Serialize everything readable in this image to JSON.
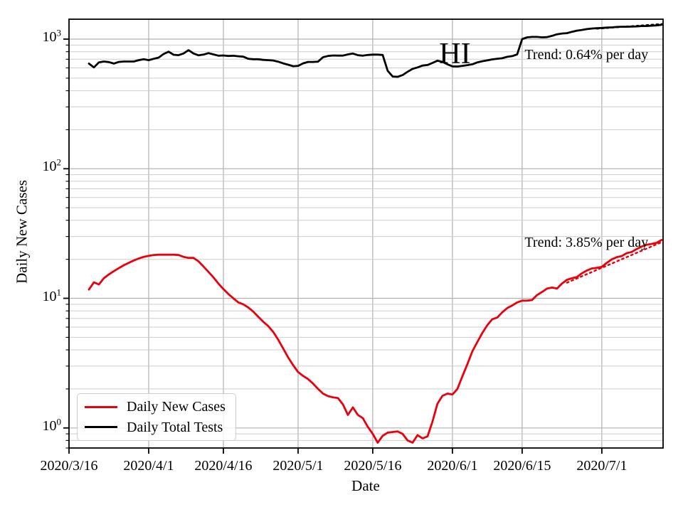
{
  "chart_data": {
    "type": "line",
    "title": "HI",
    "xlabel": "Date",
    "ylabel": "Daily New Cases",
    "yscale": "log",
    "ylim": [
      0.7,
      1425
    ],
    "xlim": [
      0,
      119.3
    ],
    "x_unit": "days since 2020/3/16",
    "grid": "both",
    "x_ticks": [
      {
        "day": 0,
        "label": "2020/3/16"
      },
      {
        "day": 16,
        "label": "2020/4/1"
      },
      {
        "day": 31,
        "label": "2020/4/16"
      },
      {
        "day": 46,
        "label": "2020/5/1"
      },
      {
        "day": 61,
        "label": "2020/5/16"
      },
      {
        "day": 77,
        "label": "2020/6/1"
      },
      {
        "day": 91,
        "label": "2020/6/15"
      },
      {
        "day": 107,
        "label": "2020/7/1"
      }
    ],
    "y_ticks": [
      {
        "exp": 0,
        "label": "10^0"
      },
      {
        "exp": 1,
        "label": "10^1"
      },
      {
        "exp": 2,
        "label": "10^2"
      },
      {
        "exp": 3,
        "label": "10^3"
      }
    ],
    "series": [
      {
        "name": "Daily New Cases",
        "color": "#e8000b",
        "line_style": "solid",
        "x_day_start": 4,
        "x_day_step": 1,
        "values": [
          11.7,
          13.3,
          12.8,
          14.3,
          15.3,
          16.2,
          17.1,
          18.0,
          18.8,
          19.6,
          20.3,
          20.9,
          21.3,
          21.6,
          21.7,
          21.7,
          21.7,
          21.7,
          21.6,
          20.9,
          20.5,
          20.5,
          19.3,
          17.6,
          16.0,
          14.5,
          13.0,
          11.8,
          10.8,
          10.0,
          9.3,
          9.0,
          8.5,
          7.9,
          7.2,
          6.6,
          6.1,
          5.5,
          4.8,
          4.1,
          3.5,
          3.05,
          2.7,
          2.52,
          2.38,
          2.2,
          2.0,
          1.84,
          1.76,
          1.72,
          1.7,
          1.52,
          1.26,
          1.44,
          1.26,
          1.19,
          1.02,
          0.9,
          0.77,
          0.87,
          0.92,
          0.93,
          0.94,
          0.9,
          0.8,
          0.77,
          0.88,
          0.83,
          0.86,
          1.12,
          1.54,
          1.77,
          1.84,
          1.81,
          2.0,
          2.5,
          3.1,
          3.9,
          4.6,
          5.4,
          6.2,
          6.9,
          7.1,
          7.8,
          8.4,
          8.8,
          9.3,
          9.6,
          9.6,
          9.7,
          10.6,
          11.2,
          11.9,
          12.1,
          11.9,
          13.0,
          13.9,
          14.3,
          14.6,
          15.6,
          16.4,
          17.0,
          17.2,
          17.5,
          18.8,
          20.0,
          20.8,
          21.2,
          22.3,
          22.8,
          24.0,
          25.1,
          25.9,
          26.3,
          26.8,
          28.2
        ]
      },
      {
        "name": "Daily Total Tests",
        "color": "#000000",
        "line_style": "solid",
        "x_day_start": 4,
        "x_day_step": 1,
        "values": [
          648,
          605,
          662,
          672,
          665,
          648,
          667,
          672,
          672,
          672,
          688,
          700,
          688,
          705,
          720,
          768,
          800,
          758,
          752,
          775,
          822,
          775,
          750,
          760,
          780,
          762,
          745,
          748,
          742,
          744,
          738,
          732,
          705,
          700,
          700,
          692,
          688,
          684,
          670,
          650,
          635,
          618,
          622,
          650,
          667,
          667,
          670,
          725,
          742,
          748,
          746,
          746,
          762,
          774,
          752,
          745,
          755,
          760,
          760,
          755,
          570,
          515,
          512,
          528,
          560,
          590,
          605,
          625,
          632,
          655,
          682,
          668,
          640,
          617,
          615,
          622,
          630,
          640,
          662,
          675,
          686,
          698,
          706,
          712,
          730,
          740,
          762,
          1000,
          1032,
          1040,
          1040,
          1032,
          1036,
          1060,
          1090,
          1105,
          1112,
          1140,
          1163,
          1178,
          1196,
          1208,
          1216,
          1220,
          1228,
          1232,
          1242,
          1247,
          1247,
          1250,
          1255,
          1262,
          1262,
          1270,
          1277,
          1290
        ]
      },
      {
        "name": "Daily New Cases trend fit",
        "color": "#e8000b",
        "line_style": "dotted",
        "x_days": [
          100,
          119.3
        ],
        "values": [
          13.2,
          27.4
        ]
      },
      {
        "name": "Daily Total Tests trend fit",
        "color": "#000000",
        "line_style": "dotted",
        "x_days": [
          106,
          119.3
        ],
        "values": [
          1205,
          1310
        ]
      }
    ],
    "annotations": [
      {
        "id": "chart-title",
        "kind": "title",
        "text": "HI",
        "x_day": 77.5,
        "y_value": 767,
        "align": "center"
      },
      {
        "id": "trend-tests-label",
        "kind": "trend",
        "text": "Trend: 0.64% per day",
        "x_day": 91.5,
        "y_value": 755,
        "align": "left"
      },
      {
        "id": "trend-cases-label",
        "kind": "trend",
        "text": "Trend: 3.85% per day",
        "x_day": 91.5,
        "y_value": 27.0,
        "align": "left"
      }
    ],
    "legend": {
      "position": "lower left",
      "entries": [
        {
          "label": "Daily New Cases",
          "color": "#e8000b"
        },
        {
          "label": "Daily Total Tests",
          "color": "#000000"
        }
      ]
    }
  }
}
